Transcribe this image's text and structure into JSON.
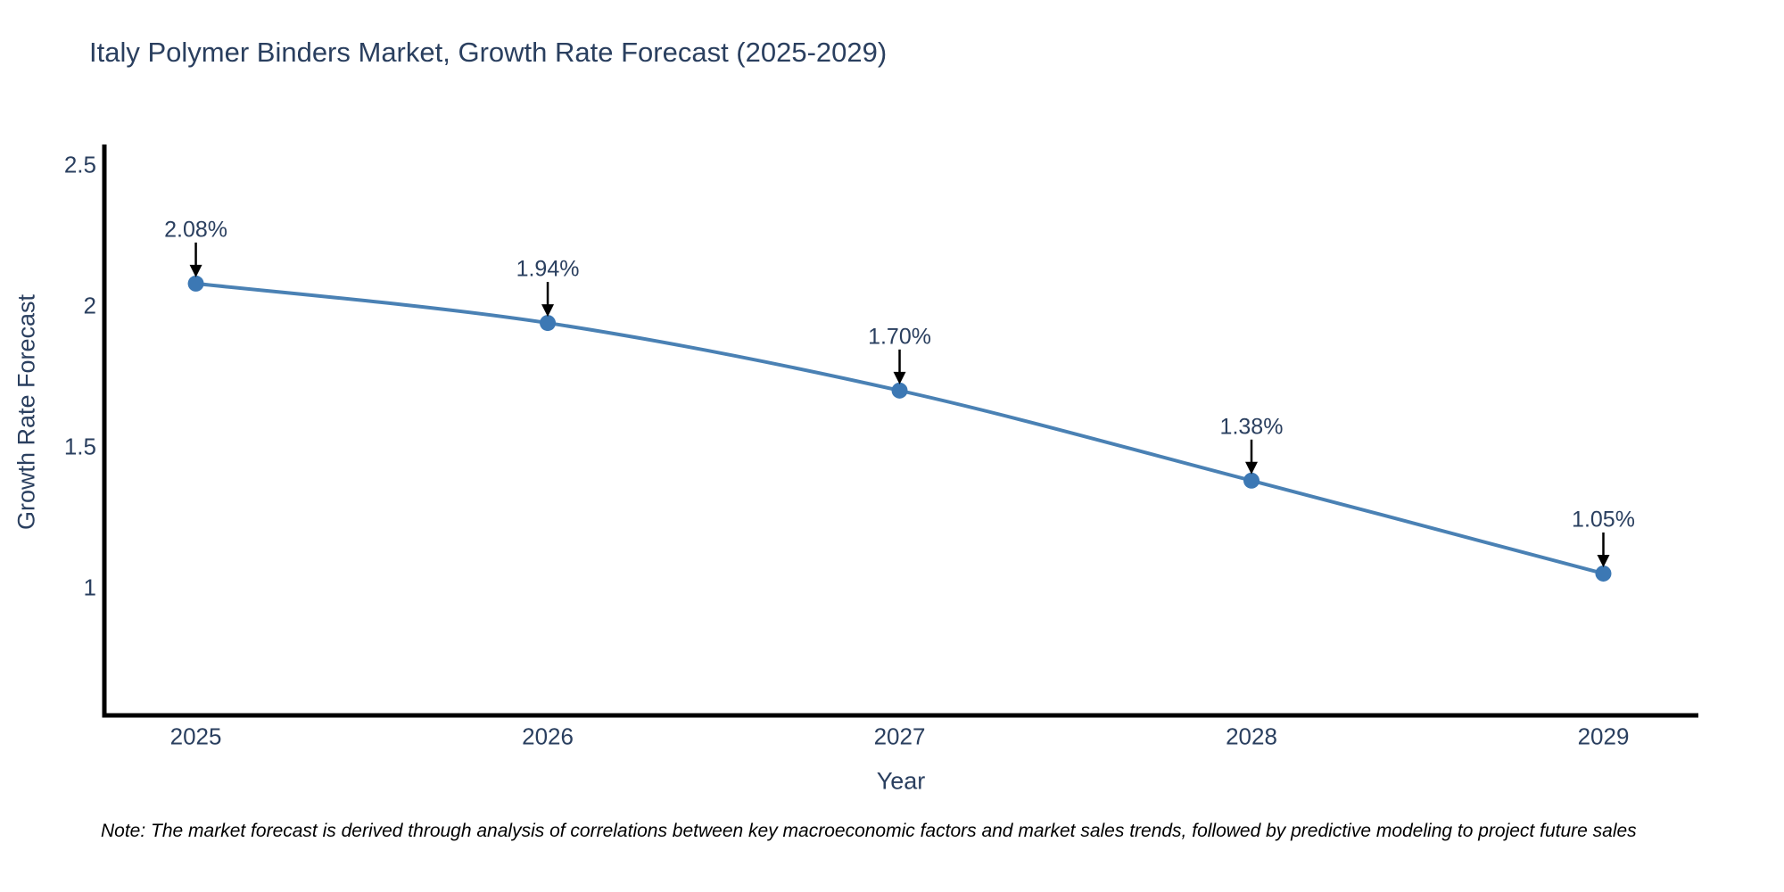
{
  "title": "Italy Polymer Binders Market, Growth Rate Forecast (2025-2029)",
  "note": "Note: The market forecast is derived through analysis of correlations between key macroeconomic factors and market sales trends, followed by predictive modeling to project future sales",
  "colors": {
    "background": "#ffffff",
    "text": "#2a3f5f",
    "note_text": "#000000",
    "line": "#4a81b4",
    "marker": "#3c78b4",
    "axis": "#000000",
    "annotation_arrow": "#000000"
  },
  "chart_data": {
    "type": "line",
    "title": "Italy Polymer Binders Market, Growth Rate Forecast (2025-2029)",
    "xlabel": "Year",
    "ylabel": "Growth Rate Forecast",
    "x": [
      2025,
      2026,
      2027,
      2028,
      2029
    ],
    "y": [
      2.08,
      1.94,
      1.7,
      1.38,
      1.05
    ],
    "point_labels": [
      "2.08%",
      "1.94%",
      "1.70%",
      "1.38%",
      "1.05%"
    ],
    "xtick_labels": [
      "2025",
      "2026",
      "2027",
      "2028",
      "2029"
    ],
    "ytick_values": [
      1,
      1.5,
      2,
      2.5
    ],
    "ytick_labels": [
      "1",
      "1.5",
      "2",
      "2.5"
    ],
    "xlim": [
      2024.74,
      2029.27
    ],
    "ylim": [
      0.546,
      2.574
    ],
    "grid": false,
    "legend": false,
    "line_shape": "spline",
    "line_width": 4,
    "marker_size": 9
  }
}
